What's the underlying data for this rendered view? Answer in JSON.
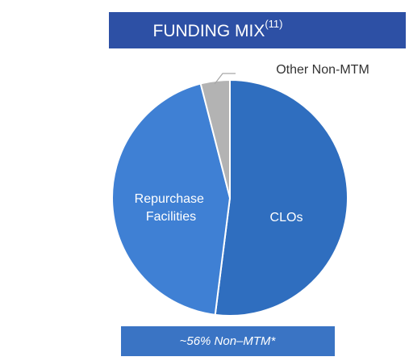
{
  "chart_data": {
    "type": "pie",
    "title": "FUNDING MIX",
    "title_superscript": "(11)",
    "categories": [
      "CLOs",
      "Repurchase Facilities",
      "Other Non-MTM"
    ],
    "values": [
      52,
      44,
      4
    ],
    "colors": [
      "#2f6ebf",
      "#3f80d4",
      "#b3b3b3"
    ],
    "annotation": "~56% Non–MTM*"
  }
}
